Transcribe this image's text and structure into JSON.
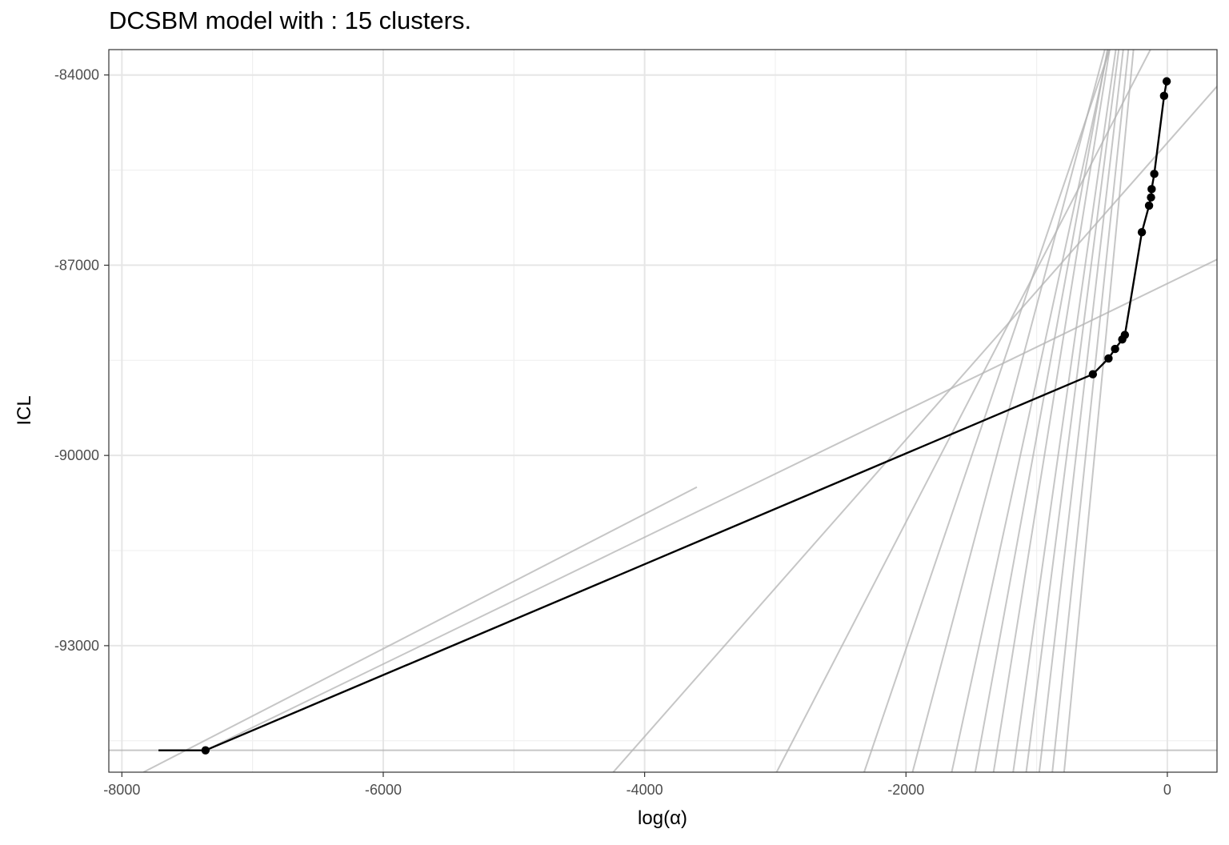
{
  "chart_data": {
    "type": "line",
    "title": "DCSBM model with : 15 clusters.",
    "xlabel": "log(α)",
    "ylabel": "ICL",
    "xlim": [
      -8100,
      380
    ],
    "ylim": [
      -94995,
      -83600
    ],
    "x_ticks": [
      -8000,
      -6000,
      -4000,
      -2000,
      0
    ],
    "x_tick_labels": [
      "-8000",
      "-6000",
      "-4000",
      "-2000",
      "0"
    ],
    "y_ticks": [
      -84000,
      -87000,
      -90000,
      -93000
    ],
    "y_tick_labels": [
      "-84000",
      "-87000",
      "-90000",
      "-93000"
    ],
    "grid": true,
    "legend": "none",
    "series": [
      {
        "role": "front",
        "color": "#000000",
        "x": [
          -7720,
          -7360,
          -570,
          -450,
          -400,
          -345,
          -325,
          -195,
          -140,
          -125,
          -120,
          -100,
          -25,
          -5
        ],
        "y": [
          -94650,
          -94650,
          -88720,
          -88470,
          -88320,
          -88170,
          -88100,
          -86480,
          -86060,
          -85930,
          -85800,
          -85560,
          -84330,
          -84100
        ],
        "markers_from_index": 1
      }
    ],
    "reference_lines": {
      "color": "#b3b3b3",
      "lines": [
        {
          "x1": -8100,
          "y1": -94650,
          "x2": 380,
          "y2": -94650
        },
        {
          "x1": -7835,
          "y1": -94995,
          "x2": -3600,
          "y2": -90500
        },
        {
          "x1": -7360,
          "y1": -94650,
          "x2": 380,
          "y2": -86910
        },
        {
          "x1": -4240,
          "y1": -94995,
          "x2": 380,
          "y2": -84180
        },
        {
          "x1": -2990,
          "y1": -94995,
          "x2": 380,
          "y2": -81570
        },
        {
          "x1": -2320,
          "y1": -94995,
          "x2": 380,
          "y2": -78620
        },
        {
          "x1": -1950,
          "y1": -94995,
          "x2": 380,
          "y2": -76950
        },
        {
          "x1": -1650,
          "y1": -94995,
          "x2": 380,
          "y2": -75680
        },
        {
          "x1": -1470,
          "y1": -94995,
          "x2": 380,
          "y2": -74150
        },
        {
          "x1": -1330,
          "y1": -94995,
          "x2": 380,
          "y2": -73060
        },
        {
          "x1": -1180,
          "y1": -94995,
          "x2": 380,
          "y2": -72370
        },
        {
          "x1": -1080,
          "y1": -94995,
          "x2": 380,
          "y2": -71510
        },
        {
          "x1": -980,
          "y1": -94995,
          "x2": 380,
          "y2": -70870
        },
        {
          "x1": -880,
          "y1": -94995,
          "x2": 380,
          "y2": -70330
        },
        {
          "x1": -790,
          "y1": -94995,
          "x2": 380,
          "y2": -69880
        }
      ]
    }
  }
}
